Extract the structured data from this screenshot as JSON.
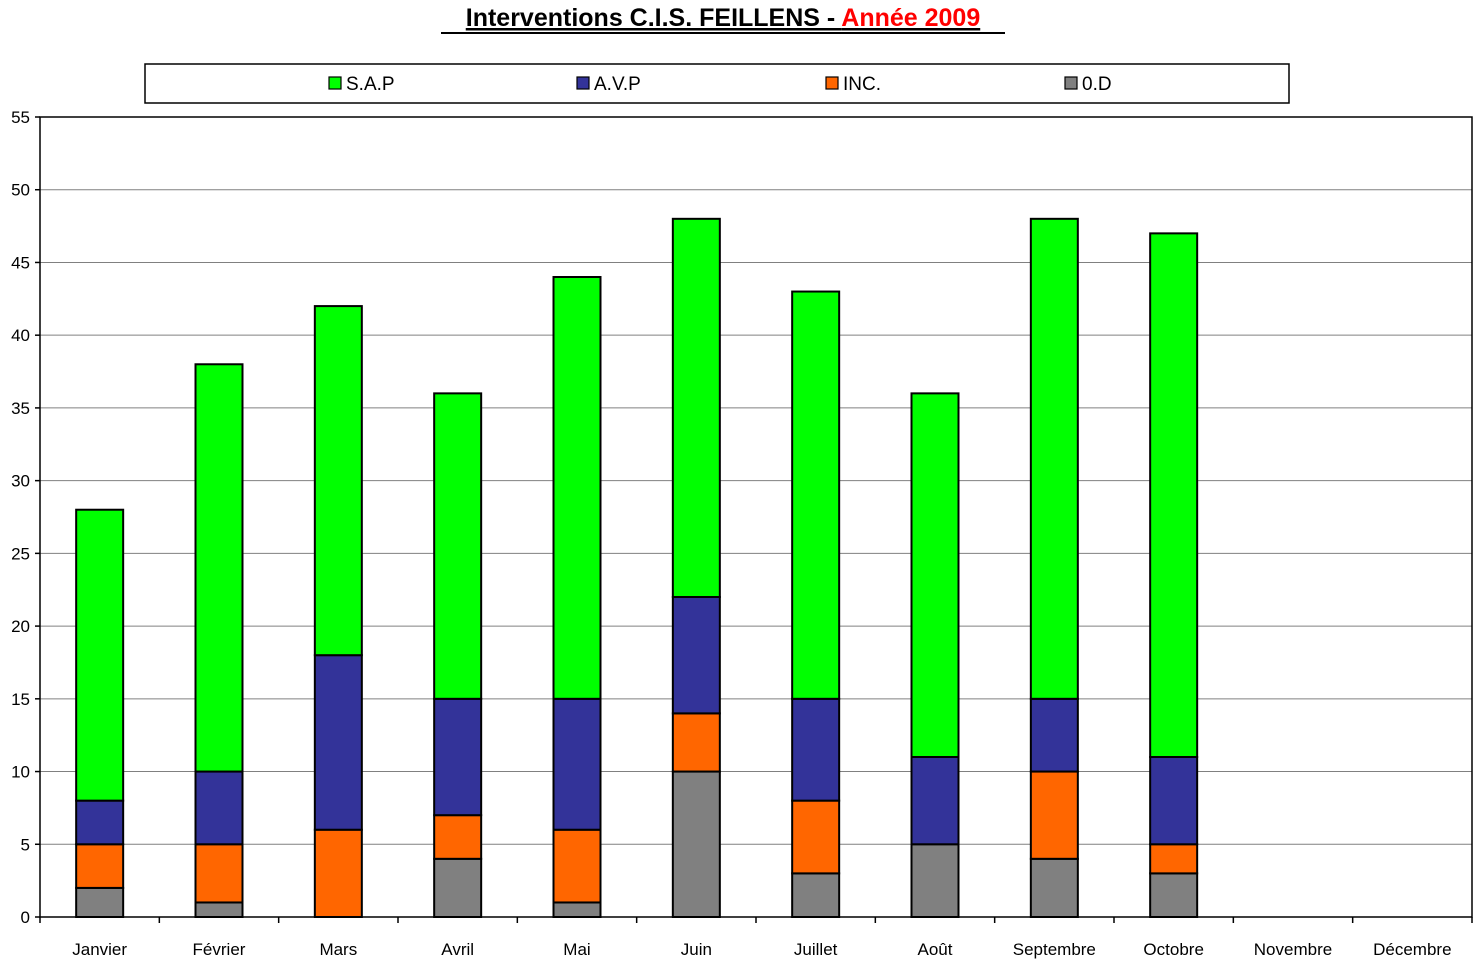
{
  "chart_data": {
    "type": "bar",
    "stacked": true,
    "title_main": "Interventions C.I.S. FEILLENS - ",
    "title_year": "Année 2009",
    "categories": [
      "Janvier",
      "Février",
      "Mars",
      "Avril",
      "Mai",
      "Juin",
      "Juillet",
      "Août",
      "Septembre",
      "Octobre",
      "Novembre",
      "Décembre"
    ],
    "series": [
      {
        "name": "0.D",
        "color": "#808080",
        "values": [
          2,
          1,
          0,
          4,
          1,
          10,
          3,
          5,
          4,
          3,
          0,
          0
        ]
      },
      {
        "name": "INC.",
        "color": "#ff6600",
        "values": [
          3,
          4,
          6,
          3,
          5,
          4,
          5,
          0,
          6,
          2,
          0,
          0
        ]
      },
      {
        "name": "A.V.P",
        "color": "#333399",
        "values": [
          3,
          5,
          12,
          8,
          9,
          8,
          7,
          6,
          5,
          6,
          0,
          0
        ]
      },
      {
        "name": "S.A.P",
        "color": "#00ff00",
        "values": [
          20,
          28,
          24,
          21,
          29,
          26,
          28,
          25,
          33,
          36,
          0,
          0
        ]
      }
    ],
    "legend_order": [
      "S.A.P",
      "A.V.P",
      "INC.",
      "0.D"
    ],
    "ylim": [
      0,
      55
    ],
    "yticks": [
      0,
      5,
      10,
      15,
      20,
      25,
      30,
      35,
      40,
      45,
      50,
      55
    ],
    "grid": true,
    "legend_position": "top",
    "colors": {
      "title_year": "#ff0000",
      "gridline": "#808080",
      "bar_outline": "#000000"
    }
  }
}
